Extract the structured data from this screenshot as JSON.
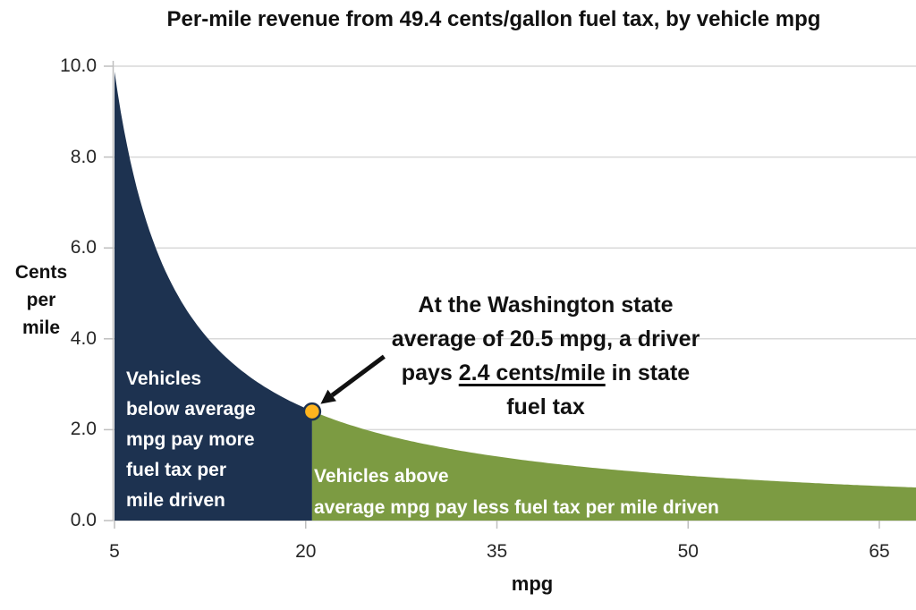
{
  "title": "Per-mile revenue from 49.4 cents/gallon fuel tax, by vehicle mpg",
  "colors": {
    "below_area": "#1d3250",
    "above_area": "#7c9b42",
    "highlight_dot": "#ffb41e",
    "gridline": "#d9d9d9",
    "axis": "#bfbfbf",
    "arrow": "#111111",
    "text": "#1a1a1a",
    "region_label_text": "#ffffff"
  },
  "chart_data": {
    "type": "area",
    "title": "Per-mile revenue from 49.4 cents/gallon fuel tax, by vehicle mpg",
    "xlabel": "mpg",
    "ylabel_lines": [
      "Cents",
      "per",
      "mile"
    ],
    "x_ticks": [
      5,
      20,
      35,
      50,
      65
    ],
    "y_tick_labels": [
      "0.0",
      "2.0",
      "4.0",
      "6.0",
      "8.0",
      "10.0"
    ],
    "xlim": [
      5,
      68
    ],
    "ylim": [
      0,
      10
    ],
    "grid": "horizontal gridlines on",
    "legend": "none (labels drawn inside areas)",
    "curve_formula": "cents_per_mile = 49.4 / mpg",
    "fuel_tax_cents_per_gallon": 49.4,
    "average_mpg": 20.5,
    "series": [
      {
        "name": "Vehicles below average mpg",
        "x_range": [
          5,
          20.5
        ],
        "color": "#1d3250"
      },
      {
        "name": "Vehicles above average mpg",
        "x_range": [
          20.5,
          68
        ],
        "color": "#7c9b42"
      }
    ],
    "samples": [
      {
        "mpg": 5,
        "cents_per_mile": 9.88
      },
      {
        "mpg": 10,
        "cents_per_mile": 4.94
      },
      {
        "mpg": 15,
        "cents_per_mile": 3.29
      },
      {
        "mpg": 20,
        "cents_per_mile": 2.47
      },
      {
        "mpg": 20.5,
        "cents_per_mile": 2.41
      },
      {
        "mpg": 25,
        "cents_per_mile": 1.98
      },
      {
        "mpg": 30,
        "cents_per_mile": 1.65
      },
      {
        "mpg": 35,
        "cents_per_mile": 1.41
      },
      {
        "mpg": 40,
        "cents_per_mile": 1.24
      },
      {
        "mpg": 45,
        "cents_per_mile": 1.1
      },
      {
        "mpg": 50,
        "cents_per_mile": 0.99
      },
      {
        "mpg": 55,
        "cents_per_mile": 0.9
      },
      {
        "mpg": 60,
        "cents_per_mile": 0.82
      },
      {
        "mpg": 65,
        "cents_per_mile": 0.76
      },
      {
        "mpg": 68,
        "cents_per_mile": 0.73
      }
    ],
    "highlight_point": {
      "mpg": 20.5,
      "cents_per_mile": 2.4,
      "color": "#ffb41e"
    }
  },
  "annotation": {
    "line1": "At the Washington state",
    "line2": "average of 20.5 mpg, a driver",
    "line3_prefix": "pays ",
    "line3_underlined": "2.4 cents/mile",
    "line3_suffix": " in state",
    "line4": "fuel tax"
  },
  "region_labels": {
    "below": {
      "lines": [
        "Vehicles",
        "below average",
        "mpg pay more",
        "fuel tax per",
        "mile driven"
      ]
    },
    "above": {
      "lines": [
        "Vehicles above",
        "average mpg pay less fuel tax per mile driven"
      ]
    }
  }
}
